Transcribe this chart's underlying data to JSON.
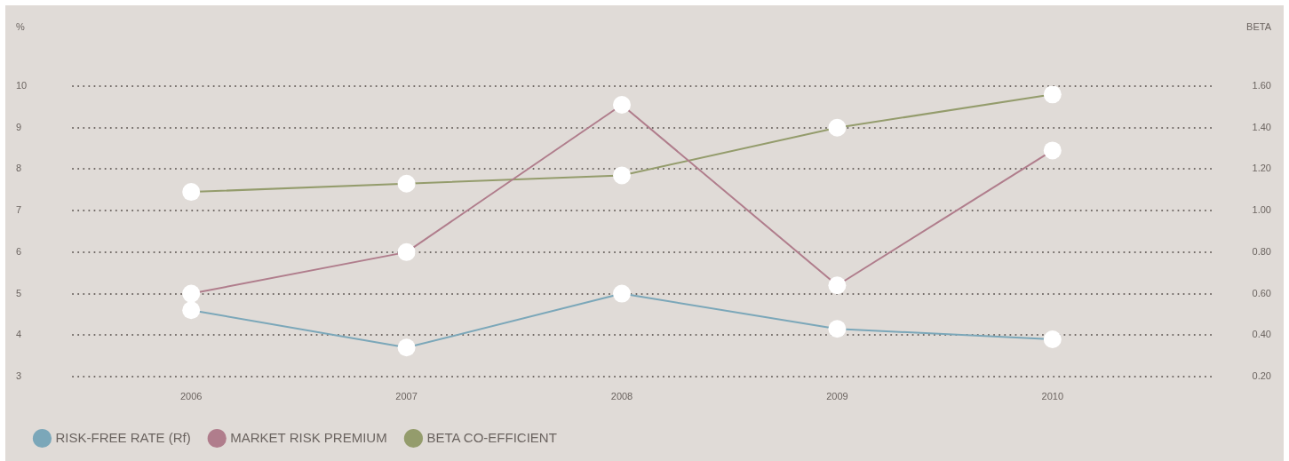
{
  "chart_data": {
    "type": "line",
    "ylabel": "%",
    "y2label": "BETA",
    "categories": [
      "2006",
      "2007",
      "2008",
      "2009",
      "2010"
    ],
    "series": [
      {
        "name": "RISK-FREE RATE (Rf)",
        "color": "#7ba7b9",
        "values": [
          4.6,
          3.7,
          5.0,
          4.15,
          3.9
        ]
      },
      {
        "name": "MARKET RISK PREMIUM",
        "color": "#b07d8c",
        "values": [
          5.0,
          6.0,
          9.55,
          5.2,
          8.45
        ]
      },
      {
        "name": "BETA CO-EFFICIENT",
        "color": "#949c6c",
        "axis": "y2",
        "values": [
          1.09,
          1.13,
          1.17,
          1.4,
          1.56
        ]
      }
    ],
    "ylim": [
      3,
      10
    ],
    "yticks": [
      3,
      4,
      5,
      6,
      7,
      8,
      9,
      10
    ],
    "y2lim": [
      0.2,
      1.6
    ],
    "y2ticks": [
      {
        "value": 0.2,
        "label": "0.20"
      },
      {
        "value": 0.4,
        "label": "0.40"
      },
      {
        "value": 0.6,
        "label": "0.60"
      },
      {
        "value": 0.8,
        "label": "0.80"
      },
      {
        "value": 1.0,
        "label": "1.00"
      },
      {
        "value": 1.2,
        "label": "1.20"
      },
      {
        "value": 1.4,
        "label": "1.40"
      },
      {
        "value": 1.6,
        "label": "1.60"
      }
    ],
    "grid": "y",
    "legend": "bottom left",
    "marker": "circle",
    "line_style": "solid"
  }
}
